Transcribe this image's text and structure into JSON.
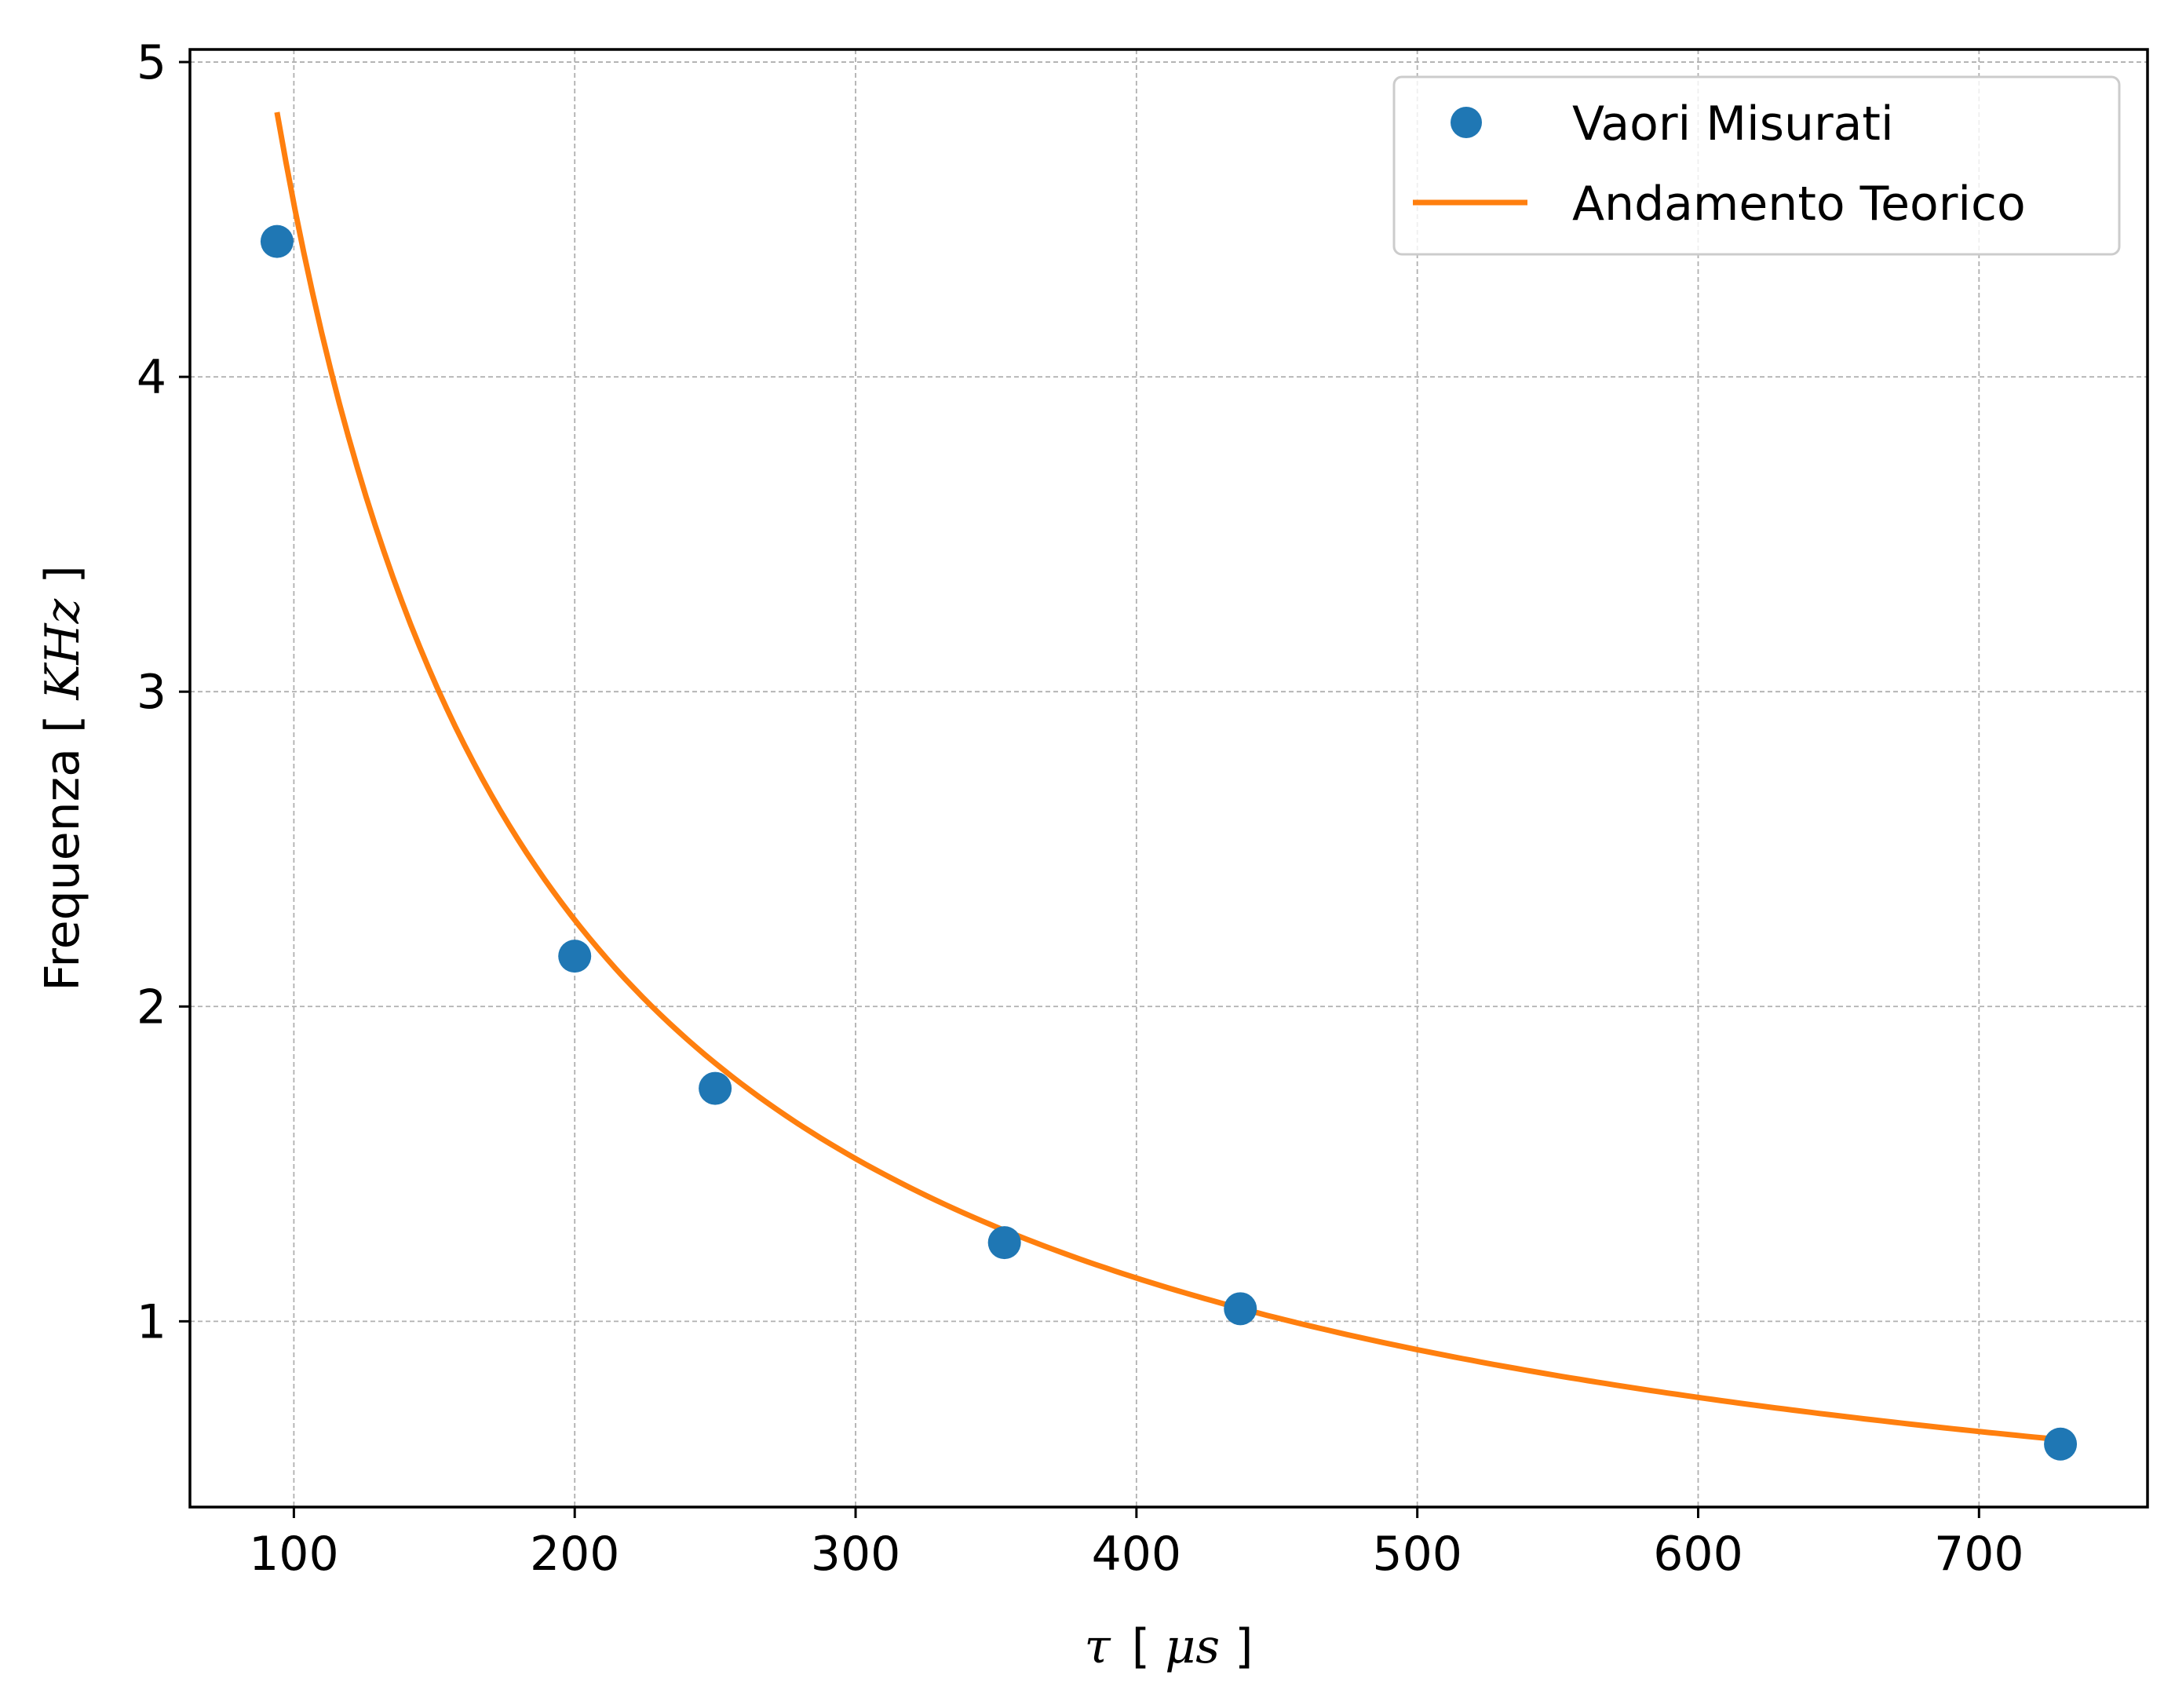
{
  "chart_data": {
    "type": "scatter",
    "xlabel": "τ [μs]",
    "xlabel_parts": {
      "sym": "τ",
      "open": "[",
      "unit": "μs",
      "close": "]"
    },
    "ylabel": "Frequenza [KHz]",
    "ylabel_parts": {
      "text": "Frequenza ",
      "open": "[",
      "unit": "KHz",
      "close": "]"
    },
    "xlim": [
      63,
      760
    ],
    "ylim": [
      0.41,
      5.04
    ],
    "xticks": [
      100,
      200,
      300,
      400,
      500,
      600,
      700
    ],
    "yticks": [
      1,
      2,
      3,
      4,
      5
    ],
    "grid": true,
    "legend_position": "top-right",
    "series": [
      {
        "name": "Vaori Misurati",
        "kind": "points",
        "color": "#1f77b4",
        "x": [
          94,
          200,
          250,
          353,
          437,
          729
        ],
        "y": [
          4.43,
          2.16,
          1.74,
          1.25,
          1.04,
          0.61
        ]
      },
      {
        "name": "Andamento Teorico",
        "kind": "line",
        "color": "#ff7f0e",
        "model": "y = 455 / x",
        "x_range": [
          94,
          729
        ]
      }
    ]
  }
}
